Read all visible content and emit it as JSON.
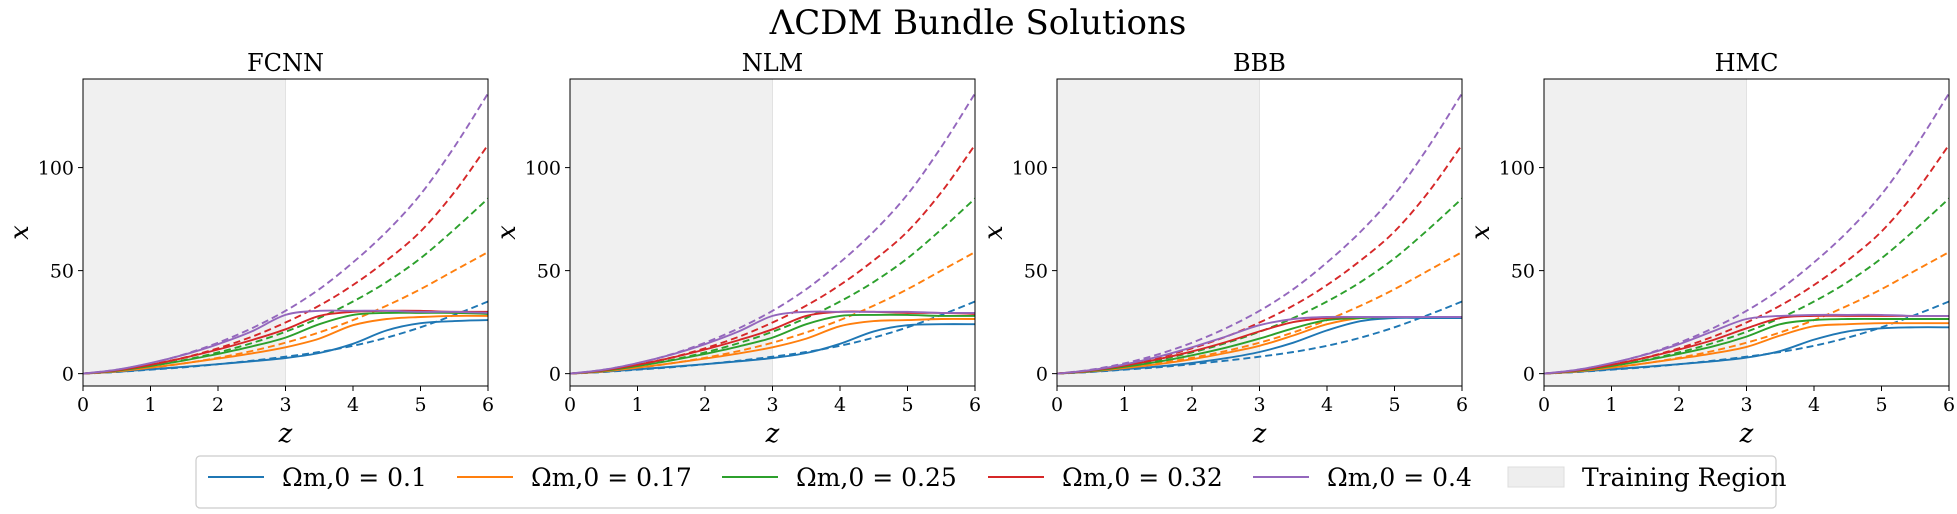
{
  "figure": {
    "title": "ΛCDM Bundle Solutions",
    "legend": {
      "placement": "bottom-center",
      "training_label": "Training Region",
      "entries": [
        {
          "label": "Ωm,0 = 0.1",
          "color": "#1f77b4"
        },
        {
          "label": "Ωm,0 = 0.17",
          "color": "#ff7f0e"
        },
        {
          "label": "Ωm,0 = 0.25",
          "color": "#2ca02c"
        },
        {
          "label": "Ωm,0 = 0.32",
          "color": "#d62728"
        },
        {
          "label": "Ωm,0 = 0.4",
          "color": "#9467bd"
        }
      ]
    }
  },
  "chart_data": [
    {
      "type": "line",
      "title": "FCNN",
      "xlabel": "z",
      "ylabel": "x",
      "xlim": [
        0,
        6
      ],
      "ylim": [
        -6,
        143
      ],
      "xticks": [
        "0",
        "1",
        "2",
        "3",
        "4",
        "5",
        "6"
      ],
      "yticks": [
        "0",
        "50",
        "100"
      ],
      "training_region": [
        0,
        3
      ],
      "x": [
        0,
        0.5,
        1,
        1.5,
        2,
        2.5,
        3,
        3.5,
        4,
        4.5,
        5,
        5.5,
        6
      ],
      "series": [
        {
          "name": "Ωm,0 = 0.1 (solution)",
          "omega": 0.1,
          "style": "solid",
          "values": [
            0,
            0.9,
            2.1,
            3.3,
            4.6,
            6,
            7.6,
            10,
            14.5,
            21,
            24.5,
            25.5,
            26
          ]
        },
        {
          "name": "Ωm,0 = 0.17 (solution)",
          "omega": 0.17,
          "style": "solid",
          "values": [
            0,
            1.1,
            2.9,
            5,
            7.3,
            9.8,
            12.8,
            17,
            23.5,
            26.5,
            27.5,
            28,
            28
          ]
        },
        {
          "name": "Ωm,0 = 0.25 (solution)",
          "omega": 0.25,
          "style": "solid",
          "values": [
            0,
            1.4,
            3.7,
            6.4,
            9.6,
            13.2,
            17.5,
            24,
            28.5,
            29.5,
            29.5,
            29.5,
            29
          ]
        },
        {
          "name": "Ωm,0 = 0.32 (solution)",
          "omega": 0.32,
          "style": "solid",
          "values": [
            0,
            1.6,
            4.3,
            7.7,
            11.7,
            16.3,
            21.5,
            28,
            30,
            30.5,
            30.5,
            30,
            30
          ]
        },
        {
          "name": "Ωm,0 = 0.4 (solution)",
          "omega": 0.4,
          "style": "solid",
          "values": [
            0,
            1.9,
            5.1,
            9.2,
            14.3,
            20.5,
            28.5,
            30.5,
            30.5,
            30.5,
            30,
            30,
            29.5
          ]
        },
        {
          "name": "Ωm,0 = 0.1 (reference)",
          "omega": 0.1,
          "style": "dashed",
          "values": [
            0,
            0.8,
            1.9,
            3.1,
            4.6,
            6.3,
            8.2,
            10.5,
            13.5,
            17.5,
            22.5,
            28.5,
            35
          ]
        },
        {
          "name": "Ωm,0 = 0.17 (reference)",
          "omega": 0.17,
          "style": "dashed",
          "values": [
            0,
            1.1,
            2.8,
            5,
            7.7,
            11,
            15,
            20,
            26,
            33,
            41,
            50,
            59
          ]
        },
        {
          "name": "Ωm,0 = 0.25 (reference)",
          "omega": 0.25,
          "style": "dashed",
          "values": [
            0,
            1.4,
            3.7,
            6.6,
            10.3,
            14.8,
            20.3,
            27,
            35,
            44.5,
            56,
            70,
            85
          ]
        },
        {
          "name": "Ωm,0 = 0.32 (reference)",
          "omega": 0.32,
          "style": "dashed",
          "values": [
            0,
            1.6,
            4.3,
            7.8,
            12.3,
            17.9,
            24.8,
            33,
            43,
            55,
            69,
            88,
            111
          ]
        },
        {
          "name": "Ωm,0 = 0.4 (reference)",
          "omega": 0.4,
          "style": "dashed",
          "values": [
            0,
            1.9,
            5,
            9.4,
            15,
            22,
            30.5,
            41,
            54,
            69,
            87,
            110,
            136
          ]
        }
      ]
    },
    {
      "type": "line",
      "title": "NLM",
      "xlabel": "z",
      "ylabel": "x",
      "xlim": [
        0,
        6
      ],
      "ylim": [
        -6,
        143
      ],
      "xticks": [
        "0",
        "1",
        "2",
        "3",
        "4",
        "5",
        "6"
      ],
      "yticks": [
        "0",
        "50",
        "100"
      ],
      "training_region": [
        0,
        3
      ],
      "x": [
        0,
        0.5,
        1,
        1.5,
        2,
        2.5,
        3,
        3.5,
        4,
        4.5,
        5,
        5.5,
        6
      ],
      "series": [
        {
          "name": "Ωm,0 = 0.1 (solution)",
          "omega": 0.1,
          "style": "solid",
          "values": [
            0,
            0.9,
            2.1,
            3.3,
            4.6,
            6,
            7.6,
            10,
            14.5,
            20.5,
            23.5,
            24,
            24
          ]
        },
        {
          "name": "Ωm,0 = 0.17 (solution)",
          "omega": 0.17,
          "style": "solid",
          "values": [
            0,
            1.1,
            2.9,
            5,
            7.3,
            9.8,
            12.8,
            17,
            23,
            25.5,
            26,
            26.5,
            26.5
          ]
        },
        {
          "name": "Ωm,0 = 0.25 (solution)",
          "omega": 0.25,
          "style": "solid",
          "values": [
            0,
            1.4,
            3.7,
            6.4,
            9.6,
            13.2,
            17.5,
            24,
            28,
            28.5,
            28.5,
            28,
            28
          ]
        },
        {
          "name": "Ωm,0 = 0.32 (solution)",
          "omega": 0.32,
          "style": "solid",
          "values": [
            0,
            1.6,
            4.3,
            7.7,
            11.7,
            16.3,
            21.5,
            28,
            30,
            30,
            29.5,
            29.5,
            29
          ]
        },
        {
          "name": "Ωm,0 = 0.4 (solution)",
          "omega": 0.4,
          "style": "solid",
          "values": [
            0,
            1.9,
            5.1,
            9.2,
            14.3,
            20.5,
            28,
            30,
            30,
            30,
            30,
            29.5,
            29.5
          ]
        },
        {
          "name": "Ωm,0 = 0.1 (reference)",
          "omega": 0.1,
          "style": "dashed",
          "values": [
            0,
            0.8,
            1.9,
            3.1,
            4.6,
            6.3,
            8.2,
            10.5,
            13.5,
            17.5,
            22.5,
            28.5,
            35
          ]
        },
        {
          "name": "Ωm,0 = 0.17 (reference)",
          "omega": 0.17,
          "style": "dashed",
          "values": [
            0,
            1.1,
            2.8,
            5,
            7.7,
            11,
            15,
            20,
            26,
            33,
            41,
            50,
            59
          ]
        },
        {
          "name": "Ωm,0 = 0.25 (reference)",
          "omega": 0.25,
          "style": "dashed",
          "values": [
            0,
            1.4,
            3.7,
            6.6,
            10.3,
            14.8,
            20.3,
            27,
            35,
            44.5,
            56,
            70,
            85
          ]
        },
        {
          "name": "Ωm,0 = 0.32 (reference)",
          "omega": 0.32,
          "style": "dashed",
          "values": [
            0,
            1.6,
            4.3,
            7.8,
            12.3,
            17.9,
            24.8,
            33,
            43,
            55,
            69,
            88,
            111
          ]
        },
        {
          "name": "Ωm,0 = 0.4 (reference)",
          "omega": 0.4,
          "style": "dashed",
          "values": [
            0,
            1.9,
            5,
            9.4,
            15,
            22,
            30.5,
            41,
            54,
            69,
            87,
            110,
            136
          ]
        }
      ]
    },
    {
      "type": "line",
      "title": "BBB",
      "xlabel": "z",
      "ylabel": "x",
      "xlim": [
        0,
        6
      ],
      "ylim": [
        -6,
        143
      ],
      "xticks": [
        "0",
        "1",
        "2",
        "3",
        "4",
        "5",
        "6"
      ],
      "yticks": [
        "0",
        "50",
        "100"
      ],
      "training_region": [
        0,
        3
      ],
      "x": [
        0,
        0.5,
        1,
        1.5,
        2,
        2.5,
        3,
        3.5,
        4,
        4.5,
        5,
        5.5,
        6
      ],
      "series": [
        {
          "name": "Ωm,0 = 0.1 (solution)",
          "omega": 0.1,
          "style": "solid",
          "values": [
            0,
            0.9,
            2.1,
            3.5,
            5.2,
            7.5,
            10.5,
            15,
            21,
            25.5,
            27,
            27,
            27
          ]
        },
        {
          "name": "Ωm,0 = 0.17 (solution)",
          "omega": 0.17,
          "style": "solid",
          "values": [
            0,
            1.1,
            2.7,
            4.6,
            7,
            10,
            13.5,
            18.5,
            24,
            27,
            27.5,
            27.5,
            27.5
          ]
        },
        {
          "name": "Ωm,0 = 0.25 (solution)",
          "omega": 0.25,
          "style": "solid",
          "values": [
            0,
            1.3,
            3.3,
            5.8,
            8.9,
            12.6,
            17,
            22,
            26,
            27,
            27.5,
            27.5,
            27.5
          ]
        },
        {
          "name": "Ωm,0 = 0.32 (solution)",
          "omega": 0.32,
          "style": "solid",
          "values": [
            0,
            1.5,
            3.9,
            7,
            10.8,
            15.3,
            20.5,
            25,
            27,
            27.5,
            27.5,
            27.5,
            27.5
          ]
        },
        {
          "name": "Ωm,0 = 0.4 (solution)",
          "omega": 0.4,
          "style": "solid",
          "values": [
            0,
            1.7,
            4.5,
            8.2,
            12.8,
            18,
            23.5,
            26.5,
            27.5,
            27.5,
            27.5,
            27.5,
            27.5
          ]
        },
        {
          "name": "Ωm,0 = 0.1 (reference)",
          "omega": 0.1,
          "style": "dashed",
          "values": [
            0,
            0.8,
            1.9,
            3.1,
            4.6,
            6.3,
            8.2,
            10.5,
            13.5,
            17.5,
            22.5,
            28.5,
            35
          ]
        },
        {
          "name": "Ωm,0 = 0.17 (reference)",
          "omega": 0.17,
          "style": "dashed",
          "values": [
            0,
            1.1,
            2.8,
            5,
            7.7,
            11,
            15,
            20,
            26,
            33,
            41,
            50,
            59
          ]
        },
        {
          "name": "Ωm,0 = 0.25 (reference)",
          "omega": 0.25,
          "style": "dashed",
          "values": [
            0,
            1.4,
            3.7,
            6.6,
            10.3,
            14.8,
            20.3,
            27,
            35,
            44.5,
            56,
            70,
            85
          ]
        },
        {
          "name": "Ωm,0 = 0.32 (reference)",
          "omega": 0.32,
          "style": "dashed",
          "values": [
            0,
            1.6,
            4.3,
            7.8,
            12.3,
            17.9,
            24.8,
            33,
            43,
            55,
            69,
            88,
            111
          ]
        },
        {
          "name": "Ωm,0 = 0.4 (reference)",
          "omega": 0.4,
          "style": "dashed",
          "values": [
            0,
            1.9,
            5,
            9.4,
            15,
            22,
            30.5,
            41,
            54,
            69,
            87,
            110,
            136
          ]
        }
      ]
    },
    {
      "type": "line",
      "title": "HMC",
      "xlabel": "z",
      "ylabel": "x",
      "xlim": [
        0,
        6
      ],
      "ylim": [
        -6,
        143
      ],
      "xticks": [
        "0",
        "1",
        "2",
        "3",
        "4",
        "5",
        "6"
      ],
      "yticks": [
        "0",
        "50",
        "100"
      ],
      "training_region": [
        0,
        3
      ],
      "x": [
        0,
        0.5,
        1,
        1.5,
        2,
        2.5,
        3,
        3.5,
        4,
        4.5,
        5,
        5.5,
        6
      ],
      "series": [
        {
          "name": "Ωm,0 = 0.1 (solution)",
          "omega": 0.1,
          "style": "solid",
          "values": [
            0,
            0.9,
            2.1,
            3.3,
            4.6,
            6,
            7.8,
            11,
            16.5,
            20.5,
            22,
            22.5,
            22.5
          ]
        },
        {
          "name": "Ωm,0 = 0.17 (solution)",
          "omega": 0.17,
          "style": "solid",
          "values": [
            0,
            1.1,
            2.9,
            5,
            7.3,
            9.8,
            13,
            18.5,
            23,
            24,
            24.5,
            24.5,
            24.5
          ]
        },
        {
          "name": "Ωm,0 = 0.25 (solution)",
          "omega": 0.25,
          "style": "solid",
          "values": [
            0,
            1.4,
            3.7,
            6.4,
            9.6,
            13.2,
            18,
            24,
            26,
            26.5,
            26.5,
            26.5,
            26.5
          ]
        },
        {
          "name": "Ωm,0 = 0.32 (solution)",
          "omega": 0.32,
          "style": "solid",
          "values": [
            0,
            1.6,
            4.3,
            7.7,
            11.7,
            16.3,
            22,
            27,
            28,
            28,
            28,
            28,
            28
          ]
        },
        {
          "name": "Ωm,0 = 0.4 (solution)",
          "omega": 0.4,
          "style": "solid",
          "values": [
            0,
            1.9,
            5.1,
            9.2,
            14.3,
            20.5,
            26.5,
            28,
            28.5,
            28.5,
            28.5,
            28,
            28
          ]
        },
        {
          "name": "Ωm,0 = 0.1 (reference)",
          "omega": 0.1,
          "style": "dashed",
          "values": [
            0,
            0.8,
            1.9,
            3.1,
            4.6,
            6.3,
            8.2,
            10.5,
            13.5,
            17.5,
            22.5,
            28.5,
            35
          ]
        },
        {
          "name": "Ωm,0 = 0.17 (reference)",
          "omega": 0.17,
          "style": "dashed",
          "values": [
            0,
            1.1,
            2.8,
            5,
            7.7,
            11,
            15,
            20,
            26,
            33,
            41,
            50,
            59
          ]
        },
        {
          "name": "Ωm,0 = 0.25 (reference)",
          "omega": 0.25,
          "style": "dashed",
          "values": [
            0,
            1.4,
            3.7,
            6.6,
            10.3,
            14.8,
            20.3,
            27,
            35,
            44.5,
            56,
            70,
            85
          ]
        },
        {
          "name": "Ωm,0 = 0.32 (reference)",
          "omega": 0.32,
          "style": "dashed",
          "values": [
            0,
            1.6,
            4.3,
            7.8,
            12.3,
            17.9,
            24.8,
            33,
            43,
            55,
            69,
            88,
            111
          ]
        },
        {
          "name": "Ωm,0 = 0.4 (reference)",
          "omega": 0.4,
          "style": "dashed",
          "values": [
            0,
            1.9,
            5,
            9.4,
            15,
            22,
            30.5,
            41,
            54,
            69,
            87,
            110,
            136
          ]
        }
      ]
    }
  ]
}
